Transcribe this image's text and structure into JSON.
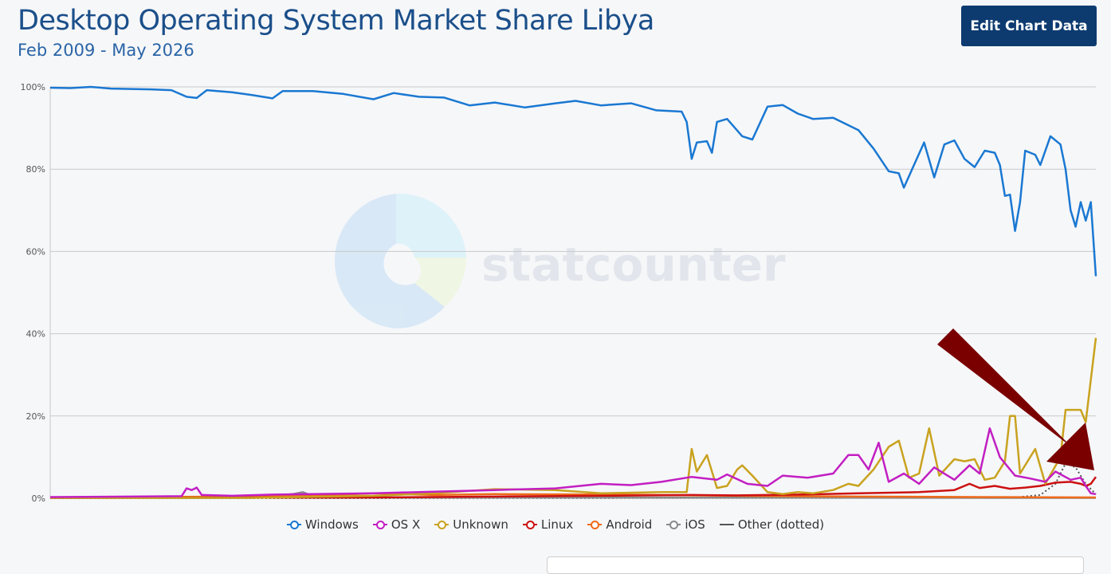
{
  "header": {
    "title": "Desktop Operating System Market Share Libya",
    "subtitle": "Feb 2009 - May 2026",
    "edit_button_label": "Edit Chart Data"
  },
  "watermark": {
    "text": "statcounter"
  },
  "colors": {
    "Windows": "#1a78d2",
    "OS X": "#c21fc2",
    "Unknown": "#c9a21f",
    "Linux": "#cc1111",
    "Android": "#ee6a1a",
    "iOS": "#8a8a8a",
    "Other (dotted)": "#555555",
    "arrow": "#7a0000"
  },
  "chart_data": {
    "type": "line",
    "x_start": "2009-02",
    "x_end": "2026-05",
    "ylim": [
      0,
      100
    ],
    "y_ticks": [
      "0%",
      "20%",
      "40%",
      "60%",
      "80%",
      "100%"
    ],
    "legend": [
      "Windows",
      "OS X",
      "Unknown",
      "Linux",
      "Android",
      "iOS",
      "Other (dotted)"
    ],
    "legend_position": "bottom",
    "grid": true,
    "series": [
      {
        "name": "Windows",
        "style": "solid",
        "points": [
          [
            "2009-02",
            99.8
          ],
          [
            "2009-06",
            99.7
          ],
          [
            "2009-10",
            100
          ],
          [
            "2010-02",
            99.6
          ],
          [
            "2010-06",
            99.5
          ],
          [
            "2010-10",
            99.4
          ],
          [
            "2011-02",
            99.2
          ],
          [
            "2011-05",
            97.6
          ],
          [
            "2011-07",
            97.3
          ],
          [
            "2011-09",
            99.2
          ],
          [
            "2012-02",
            98.7
          ],
          [
            "2012-06",
            98.0
          ],
          [
            "2012-10",
            97.2
          ],
          [
            "2012-12",
            99.0
          ],
          [
            "2013-06",
            99.0
          ],
          [
            "2013-12",
            98.3
          ],
          [
            "2014-06",
            97.0
          ],
          [
            "2014-10",
            98.5
          ],
          [
            "2015-03",
            97.6
          ],
          [
            "2015-08",
            97.4
          ],
          [
            "2016-01",
            95.5
          ],
          [
            "2016-06",
            96.2
          ],
          [
            "2016-12",
            95.0
          ],
          [
            "2017-06",
            96.0
          ],
          [
            "2017-10",
            96.6
          ],
          [
            "2018-03",
            95.5
          ],
          [
            "2018-09",
            96.0
          ],
          [
            "2019-02",
            94.3
          ],
          [
            "2019-07",
            94.0
          ],
          [
            "2019-08",
            91.5
          ],
          [
            "2019-09",
            82.5
          ],
          [
            "2019-10",
            86.5
          ],
          [
            "2019-12",
            86.8
          ],
          [
            "2020-01",
            84.0
          ],
          [
            "2020-02",
            91.5
          ],
          [
            "2020-04",
            92.2
          ],
          [
            "2020-07",
            88.0
          ],
          [
            "2020-09",
            87.2
          ],
          [
            "2020-12",
            95.2
          ],
          [
            "2021-03",
            95.6
          ],
          [
            "2021-06",
            93.5
          ],
          [
            "2021-09",
            92.2
          ],
          [
            "2022-01",
            92.5
          ],
          [
            "2022-06",
            89.5
          ],
          [
            "2022-09",
            85.0
          ],
          [
            "2022-12",
            79.5
          ],
          [
            "2023-02",
            79.0
          ],
          [
            "2023-03",
            75.5
          ],
          [
            "2023-05",
            81.0
          ],
          [
            "2023-07",
            86.5
          ],
          [
            "2023-09",
            78.0
          ],
          [
            "2023-11",
            86.0
          ],
          [
            "2024-01",
            87.0
          ],
          [
            "2024-03",
            82.5
          ],
          [
            "2024-05",
            80.5
          ],
          [
            "2024-07",
            84.5
          ],
          [
            "2024-09",
            84.0
          ],
          [
            "2024-10",
            81.0
          ],
          [
            "2024-11",
            73.5
          ],
          [
            "2024-12",
            73.8
          ],
          [
            "2025-01",
            65.0
          ],
          [
            "2025-02",
            72.0
          ],
          [
            "2025-03",
            84.5
          ],
          [
            "2025-05",
            83.5
          ],
          [
            "2025-06",
            81.0
          ],
          [
            "2025-08",
            88.0
          ],
          [
            "2025-10",
            86.0
          ],
          [
            "2025-11",
            80.0
          ],
          [
            "2025-12",
            70.0
          ],
          [
            "2026-01",
            66.0
          ],
          [
            "2026-02",
            72.0
          ],
          [
            "2026-03",
            67.5
          ],
          [
            "2026-04",
            72.0
          ],
          [
            "2026-05",
            54.0
          ]
        ]
      },
      {
        "name": "OS X",
        "style": "solid",
        "points": [
          [
            "2009-02",
            0.3
          ],
          [
            "2010-06",
            0.4
          ],
          [
            "2011-04",
            0.5
          ],
          [
            "2011-05",
            2.4
          ],
          [
            "2011-06",
            2.0
          ],
          [
            "2011-07",
            2.6
          ],
          [
            "2011-08",
            0.8
          ],
          [
            "2012-02",
            0.6
          ],
          [
            "2012-10",
            0.9
          ],
          [
            "2013-06",
            1.0
          ],
          [
            "2014-06",
            1.2
          ],
          [
            "2015-06",
            1.6
          ],
          [
            "2016-06",
            2.0
          ],
          [
            "2017-06",
            2.4
          ],
          [
            "2018-03",
            3.5
          ],
          [
            "2018-09",
            3.2
          ],
          [
            "2019-03",
            4.0
          ],
          [
            "2019-09",
            5.2
          ],
          [
            "2020-02",
            4.5
          ],
          [
            "2020-04",
            5.8
          ],
          [
            "2020-08",
            3.5
          ],
          [
            "2020-12",
            3.0
          ],
          [
            "2021-03",
            5.5
          ],
          [
            "2021-08",
            5.0
          ],
          [
            "2022-01",
            6.0
          ],
          [
            "2022-04",
            10.5
          ],
          [
            "2022-06",
            10.5
          ],
          [
            "2022-08",
            7.0
          ],
          [
            "2022-10",
            13.5
          ],
          [
            "2022-12",
            4.0
          ],
          [
            "2023-03",
            6.0
          ],
          [
            "2023-06",
            3.5
          ],
          [
            "2023-09",
            7.5
          ],
          [
            "2024-01",
            4.5
          ],
          [
            "2024-04",
            8.0
          ],
          [
            "2024-06",
            6.0
          ],
          [
            "2024-08",
            17.0
          ],
          [
            "2024-10",
            10.0
          ],
          [
            "2025-01",
            5.5
          ],
          [
            "2025-04",
            4.8
          ],
          [
            "2025-07",
            4.0
          ],
          [
            "2025-09",
            6.5
          ],
          [
            "2025-12",
            4.5
          ],
          [
            "2026-02",
            5.0
          ],
          [
            "2026-03",
            3.0
          ],
          [
            "2026-04",
            1.2
          ],
          [
            "2026-05",
            1.0
          ]
        ]
      },
      {
        "name": "Unknown",
        "style": "solid",
        "points": [
          [
            "2009-02",
            0.1
          ],
          [
            "2012-06",
            0.1
          ],
          [
            "2014-06",
            0.6
          ],
          [
            "2015-06",
            1.2
          ],
          [
            "2016-06",
            2.2
          ],
          [
            "2017-06",
            2.0
          ],
          [
            "2018-03",
            1.2
          ],
          [
            "2019-03",
            1.5
          ],
          [
            "2019-08",
            1.5
          ],
          [
            "2019-09",
            12.0
          ],
          [
            "2019-10",
            6.5
          ],
          [
            "2019-12",
            10.5
          ],
          [
            "2020-02",
            2.5
          ],
          [
            "2020-04",
            3.0
          ],
          [
            "2020-06",
            7.0
          ],
          [
            "2020-07",
            8.0
          ],
          [
            "2020-09",
            5.5
          ],
          [
            "2020-12",
            1.5
          ],
          [
            "2021-03",
            1.0
          ],
          [
            "2021-06",
            1.5
          ],
          [
            "2021-09",
            1.2
          ],
          [
            "2022-01",
            2.0
          ],
          [
            "2022-04",
            3.5
          ],
          [
            "2022-06",
            3.0
          ],
          [
            "2022-09",
            7.0
          ],
          [
            "2022-12",
            12.5
          ],
          [
            "2023-02",
            14.0
          ],
          [
            "2023-04",
            5.0
          ],
          [
            "2023-06",
            6.0
          ],
          [
            "2023-08",
            17.0
          ],
          [
            "2023-10",
            5.5
          ],
          [
            "2024-01",
            9.5
          ],
          [
            "2024-03",
            9.0
          ],
          [
            "2024-05",
            9.5
          ],
          [
            "2024-07",
            4.5
          ],
          [
            "2024-09",
            5.0
          ],
          [
            "2024-11",
            9.0
          ],
          [
            "2024-12",
            20.0
          ],
          [
            "2025-01",
            20.0
          ],
          [
            "2025-02",
            6.0
          ],
          [
            "2025-05",
            12.0
          ],
          [
            "2025-07",
            3.5
          ],
          [
            "2025-10",
            10.0
          ],
          [
            "2025-11",
            21.5
          ],
          [
            "2026-02",
            21.5
          ],
          [
            "2026-03",
            18.5
          ],
          [
            "2026-05",
            39.0
          ]
        ]
      },
      {
        "name": "Linux",
        "style": "solid",
        "points": [
          [
            "2009-02",
            0.1
          ],
          [
            "2014-06",
            0.2
          ],
          [
            "2016-06",
            0.4
          ],
          [
            "2018-03",
            0.6
          ],
          [
            "2019-09",
            0.8
          ],
          [
            "2020-06",
            0.7
          ],
          [
            "2021-06",
            0.9
          ],
          [
            "2022-06",
            1.2
          ],
          [
            "2023-06",
            1.5
          ],
          [
            "2024-01",
            2.0
          ],
          [
            "2024-04",
            3.5
          ],
          [
            "2024-06",
            2.5
          ],
          [
            "2024-09",
            3.0
          ],
          [
            "2024-12",
            2.3
          ],
          [
            "2025-03",
            2.6
          ],
          [
            "2025-06",
            3.0
          ],
          [
            "2025-09",
            3.8
          ],
          [
            "2025-12",
            4.0
          ],
          [
            "2026-02",
            3.5
          ],
          [
            "2026-03",
            3.0
          ],
          [
            "2026-04",
            3.5
          ],
          [
            "2026-05",
            5.2
          ]
        ]
      },
      {
        "name": "Android",
        "style": "solid",
        "points": [
          [
            "2009-02",
            0.2
          ],
          [
            "2010-06",
            0.3
          ],
          [
            "2012-06",
            0.4
          ],
          [
            "2013-06",
            0.6
          ],
          [
            "2014-06",
            1.2
          ],
          [
            "2015-06",
            0.8
          ],
          [
            "2016-06",
            1.0
          ],
          [
            "2018-06",
            0.9
          ],
          [
            "2020-06",
            0.6
          ],
          [
            "2022-06",
            0.4
          ],
          [
            "2024-06",
            0.3
          ],
          [
            "2026-05",
            0.2
          ]
        ]
      },
      {
        "name": "iOS",
        "style": "solid",
        "points": [
          [
            "2009-02",
            0.1
          ],
          [
            "2012-06",
            0.1
          ],
          [
            "2012-10",
            0.6
          ],
          [
            "2013-02",
            1.0
          ],
          [
            "2013-04",
            1.5
          ],
          [
            "2013-06",
            0.5
          ],
          [
            "2014-06",
            0.2
          ],
          [
            "2026-05",
            0.1
          ]
        ]
      },
      {
        "name": "Other (dotted)",
        "style": "dotted",
        "points": [
          [
            "2009-02",
            0.0
          ],
          [
            "2024-01",
            0.1
          ],
          [
            "2025-01",
            0.2
          ],
          [
            "2025-06",
            0.8
          ],
          [
            "2025-09",
            3.5
          ],
          [
            "2025-11",
            8.5
          ],
          [
            "2026-01",
            7.5
          ],
          [
            "2026-03",
            3.5
          ],
          [
            "2026-05",
            1.0
          ]
        ]
      }
    ]
  }
}
